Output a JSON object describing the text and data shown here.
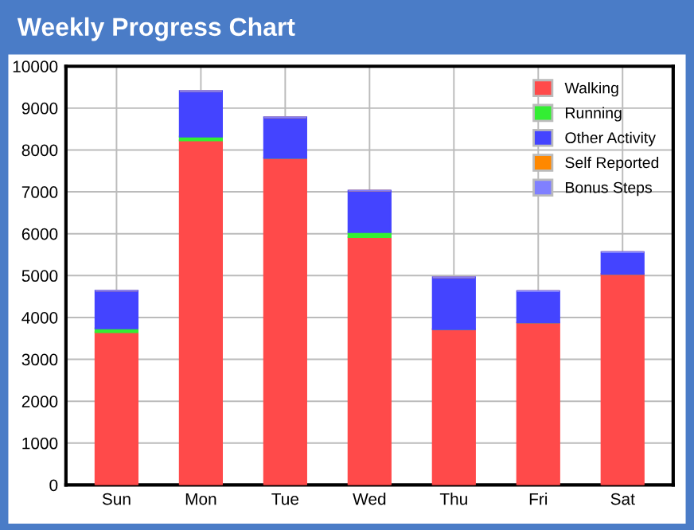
{
  "chart_data": {
    "type": "bar",
    "title": "Weekly Progress Chart",
    "stacked": true,
    "categories": [
      "Sun",
      "Mon",
      "Tue",
      "Wed",
      "Thu",
      "Fri",
      "Sat"
    ],
    "series": [
      {
        "name": "Walking",
        "color": "#ff4a4a",
        "values": [
          3650,
          8230,
          7810,
          5920,
          3720,
          3880,
          5040
        ]
      },
      {
        "name": "Running",
        "color": "#33ee33",
        "values": [
          90,
          90,
          0,
          120,
          0,
          0,
          0
        ]
      },
      {
        "name": "Other Activity",
        "color": "#4444ff",
        "values": [
          900,
          1090,
          970,
          990,
          1240,
          750,
          520
        ]
      },
      {
        "name": "Self Reported",
        "color": "#ff8800",
        "values": [
          0,
          0,
          0,
          0,
          0,
          0,
          0
        ]
      },
      {
        "name": "Bonus Steps",
        "color": "#8080ff",
        "values": [
          0,
          0,
          0,
          0,
          0,
          0,
          0
        ]
      }
    ],
    "ylim": [
      0,
      10000
    ],
    "yticks": [
      0,
      1000,
      2000,
      3000,
      4000,
      5000,
      6000,
      7000,
      8000,
      9000,
      10000
    ],
    "grid": true,
    "legend": "top right"
  }
}
